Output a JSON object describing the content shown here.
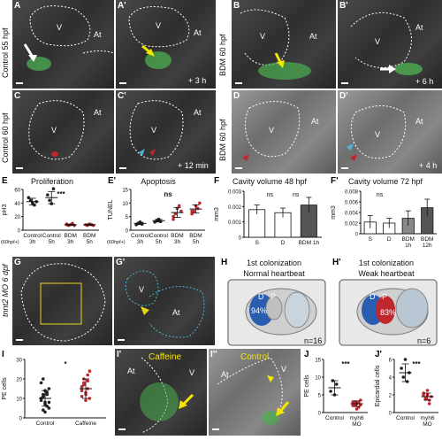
{
  "side_labels": {
    "row1": "Control 55 hpf",
    "row1b": "BDM 60 hpf",
    "row2": "Control 60 hpf",
    "row2b": "BDM 60 hpf",
    "row4": "tnnt2 MO 6 dpf"
  },
  "panels": {
    "A": {
      "letter": "A",
      "V": "V",
      "At": "At",
      "time": ""
    },
    "A2": {
      "letter": "A'",
      "V": "V",
      "At": "At",
      "time": "+ 3 h"
    },
    "B": {
      "letter": "B",
      "V": "V",
      "At": "At",
      "time": ""
    },
    "B2": {
      "letter": "B'",
      "V": "V",
      "At": "At",
      "time": "+ 6 h"
    },
    "C": {
      "letter": "C",
      "V": "V",
      "At": "At",
      "time": ""
    },
    "C2": {
      "letter": "C'",
      "V": "V",
      "At": "At",
      "time": "+ 12 min"
    },
    "D": {
      "letter": "D",
      "V": "V",
      "At": "At",
      "time": ""
    },
    "D2": {
      "letter": "D'",
      "V": "V",
      "At": "At",
      "time": "+ 4 h"
    },
    "G": {
      "letter": "G"
    },
    "G2": {
      "letter": "G'",
      "V": "V",
      "At": "At"
    },
    "I1": {
      "letter": "I'",
      "cond": "Caffeine",
      "V": "V",
      "At": "At"
    },
    "I2": {
      "letter": "I''",
      "cond": "Control",
      "V": "V",
      "At": "At"
    }
  },
  "H": {
    "letter": "H",
    "title": "1st colonization",
    "sub": "Normal heartbeat",
    "D": "D",
    "P": "P",
    "pct": "94%",
    "n": "n=16"
  },
  "H2": {
    "letter": "H'",
    "title": "1st colonization",
    "sub": "Weak heartbeat",
    "D": "D",
    "P": "P",
    "pct": "83%",
    "n": "n=6"
  },
  "chart_data": [
    {
      "id": "E",
      "letter": "E",
      "type": "scatter",
      "title": "Proliferation",
      "ylabel": "pH3",
      "ylim": [
        0,
        60
      ],
      "yticks": [
        0,
        20,
        40,
        60
      ],
      "categories": [
        "Control 3h",
        "Control 5h",
        "BDM 3h",
        "BDM 5h"
      ],
      "xlabels": [
        "Control",
        "Control",
        "BDM",
        "BDM"
      ],
      "xsub": [
        "3h",
        "5h",
        "3h",
        "5h"
      ],
      "xprefix": "(60hpf+)",
      "significance": "***",
      "series": [
        {
          "values": [
            [
              48,
              44,
              40,
              37,
              42
            ],
            [
              52,
              44,
              39,
              61
            ],
            [
              9,
              7,
              8,
              10,
              7,
              8
            ],
            [
              8,
              7,
              9,
              8,
              7
            ]
          ]
        }
      ],
      "means": [
        42,
        48,
        8,
        8
      ],
      "sd": [
        5,
        9,
        1,
        1
      ],
      "colors": [
        "#222222",
        "#222222",
        "#c0272d",
        "#c0272d"
      ]
    },
    {
      "id": "E2",
      "letter": "E'",
      "type": "scatter",
      "title": "Apoptosis",
      "ylabel": "TUNEL",
      "ylim": [
        0,
        15
      ],
      "yticks": [
        0,
        5,
        10,
        15
      ],
      "categories": [
        "Control 3h",
        "Control 5h",
        "BDM 3h",
        "BDM 5h"
      ],
      "xlabels": [
        "Control",
        "Control",
        "BDM",
        "BDM"
      ],
      "xsub": [
        "3h",
        "5h",
        "3h",
        "5h"
      ],
      "xprefix": "(60hpf+)",
      "significance": "ns",
      "series": [
        {
          "values": [
            [
              2,
              2.5,
              3,
              2.2
            ],
            [
              3,
              3.5,
              4,
              3.2
            ],
            [
              5,
              6,
              8,
              9,
              7,
              4
            ],
            [
              6,
              7,
              9,
              8,
              10,
              7
            ]
          ]
        }
      ],
      "means": [
        2.5,
        3.5,
        6.5,
        7.8
      ],
      "sd": [
        0.4,
        0.5,
        1.8,
        1.5
      ],
      "colors": [
        "#222222",
        "#222222",
        "#c0272d",
        "#c0272d"
      ]
    },
    {
      "id": "F",
      "letter": "F",
      "type": "bar",
      "title": "Cavity volume 48 hpf",
      "ylabel": "mm3",
      "ylim": [
        0,
        0.003
      ],
      "yticks": [
        0,
        0.001,
        0.002,
        0.003
      ],
      "ytick_labels": [
        "0",
        "0.001",
        "0.002",
        "0.003"
      ],
      "categories": [
        "S",
        "D",
        "BDM 1h"
      ],
      "xlabels": [
        "S",
        "D",
        "BDM 1h"
      ],
      "values": [
        0.0018,
        0.0016,
        0.0021
      ],
      "err": [
        0.0003,
        0.0003,
        0.0005
      ],
      "fills": [
        "#ffffff",
        "#ffffff",
        "#555555"
      ],
      "significance": [
        "ns",
        "ns"
      ]
    },
    {
      "id": "F2",
      "letter": "F'",
      "type": "bar",
      "title": "Cavity volume 72 hpf",
      "ylabel": "mm3",
      "ylim": [
        0,
        0.008
      ],
      "yticks": [
        0,
        0.002,
        0.004,
        0.006,
        0.008
      ],
      "ytick_labels": [
        "0",
        "0.002",
        "0.004",
        "0.006",
        "0.008"
      ],
      "categories": [
        "S",
        "D",
        "BDM 1h",
        "BDM 12h"
      ],
      "xlabels": [
        "S",
        "D",
        "BDM",
        "BDM"
      ],
      "xsub": [
        "",
        "",
        "1h",
        "12h"
      ],
      "values": [
        0.0022,
        0.002,
        0.0029,
        0.0049
      ],
      "err": [
        0.0012,
        0.0009,
        0.0014,
        0.0016
      ],
      "fills": [
        "#ffffff",
        "#ffffff",
        "#888888",
        "#555555"
      ],
      "significance": [
        "ns"
      ]
    },
    {
      "id": "I",
      "letter": "I",
      "type": "scatter",
      "title": "",
      "ylabel": "PE cells",
      "ylim": [
        0,
        30
      ],
      "yticks": [
        0,
        10,
        20,
        30
      ],
      "categories": [
        "Control",
        "Caffeine"
      ],
      "xlabels": [
        "Control",
        "Caffeine"
      ],
      "significance": "*",
      "series": [
        {
          "values": [
            [
              10,
              12,
              8,
              6,
              15,
              9,
              11,
              7,
              13,
              5,
              10,
              4,
              14,
              12,
              8,
              18,
              20,
              3
            ],
            [
              14,
              18,
              12,
              22,
              10,
              16,
              20,
              13,
              15,
              24,
              11,
              17,
              9,
              19
            ]
          ]
        }
      ],
      "means": [
        10,
        15
      ],
      "sd": [
        4,
        5
      ],
      "colors": [
        "#222222",
        "#c0272d"
      ]
    },
    {
      "id": "J",
      "letter": "J",
      "type": "scatter",
      "title": "",
      "ylabel": "PE cells",
      "ylim": [
        0,
        15
      ],
      "yticks": [
        0,
        5,
        10,
        15
      ],
      "categories": [
        "Control",
        "myh6 MO"
      ],
      "xlabels": [
        "Control",
        "myh6"
      ],
      "xsub": [
        "",
        "MO"
      ],
      "significance": "***",
      "series": [
        {
          "values": [
            [
              6,
              9,
              5,
              8
            ],
            [
              3,
              2,
              2.5,
              1.5,
              3.5,
              2,
              3,
              1,
              2.8,
              2.2
            ]
          ]
        }
      ],
      "means": [
        7,
        2.5
      ],
      "sd": [
        2,
        0.8
      ],
      "colors": [
        "#222222",
        "#c0272d"
      ]
    },
    {
      "id": "J2",
      "letter": "J'",
      "type": "scatter",
      "title": "",
      "ylabel": "Epicardial cells",
      "ylim": [
        0,
        6
      ],
      "yticks": [
        0,
        2,
        4,
        6
      ],
      "categories": [
        "Control",
        "myh6 MO"
      ],
      "xlabels": [
        "Control",
        "myh6"
      ],
      "xsub": [
        "",
        "MO"
      ],
      "significance": "***",
      "series": [
        {
          "values": [
            [
              5,
              4,
              6,
              3.5,
              4.5
            ],
            [
              2,
              1.5,
              2.5,
              1,
              1.8,
              2.2,
              1.6,
              2,
              1.4
            ]
          ]
        }
      ],
      "means": [
        4.5,
        1.8
      ],
      "sd": [
        1,
        0.4
      ],
      "colors": [
        "#222222",
        "#c0272d"
      ]
    }
  ]
}
